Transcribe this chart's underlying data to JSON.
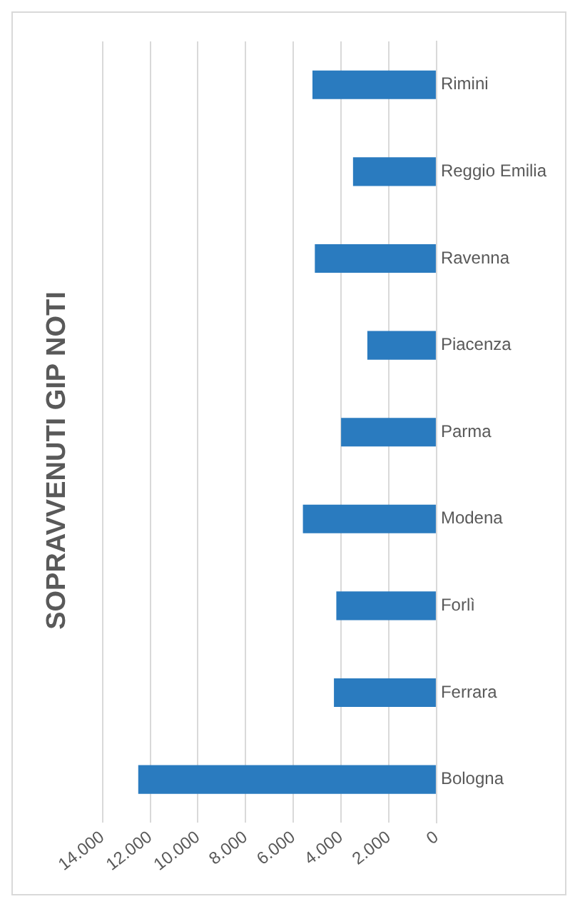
{
  "chart_data": {
    "type": "bar",
    "orientation": "horizontal",
    "title": "SOPRAVVENUTI GIP NOTI",
    "categories": [
      "Rimini",
      "Reggio Emilia",
      "Ravenna",
      "Piacenza",
      "Parma",
      "Modena",
      "Forlì",
      "Ferrara",
      "Bologna"
    ],
    "values": [
      5200,
      3500,
      5100,
      2900,
      4000,
      5600,
      4200,
      4300,
      12500
    ],
    "color": "#2a7bbf",
    "xlim": [
      14000,
      0
    ],
    "xticks": [
      {
        "value": 0,
        "label": "0"
      },
      {
        "value": 2000,
        "label": "2.000"
      },
      {
        "value": 4000,
        "label": "4.000"
      },
      {
        "value": 6000,
        "label": "6.000"
      },
      {
        "value": 8000,
        "label": "8.000"
      },
      {
        "value": 10000,
        "label": "10.000"
      },
      {
        "value": 12000,
        "label": "12.000"
      },
      {
        "value": 14000,
        "label": "14.000"
      }
    ],
    "grid": "x",
    "legend": false
  }
}
